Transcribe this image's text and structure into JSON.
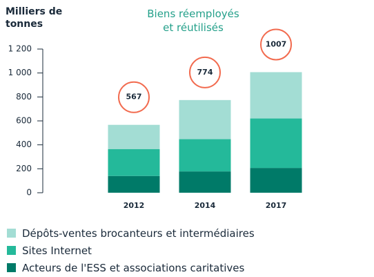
{
  "chart_data": {
    "type": "stacked_bar",
    "title": "Biens réemployés et réutilisés",
    "y_label": "Milliers de tonnes",
    "categories": [
      "2012",
      "2014",
      "2017"
    ],
    "series": [
      {
        "name": "Acteurs de l'ESS et associations caritatives",
        "color": "#007a68",
        "values": [
          140,
          178,
          207
        ]
      },
      {
        "name": "Sites Internet",
        "color": "#24b99a",
        "values": [
          225,
          270,
          413
        ]
      },
      {
        "name": "Dépôts-ventes brocanteurs et intermédiaires",
        "color": "#a3ddd4",
        "values": [
          202,
          326,
          387
        ]
      }
    ],
    "annotations": [
      "567",
      "774",
      "1007"
    ],
    "annotation_color": "#f26b4f",
    "ylim": [
      0,
      1200
    ],
    "yticks": [
      0,
      200,
      400,
      600,
      800,
      {
        "value": 1000,
        "label": "1 000"
      },
      {
        "value": 1200,
        "label": "1 200"
      }
    ]
  }
}
